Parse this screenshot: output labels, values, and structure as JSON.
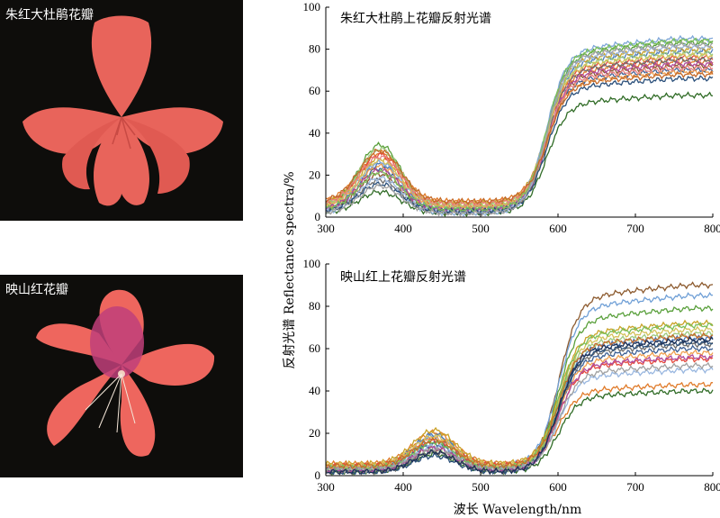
{
  "photos": [
    {
      "label": "朱红大杜鹃花瓣",
      "petal_color": "#e8645b",
      "vein_color": "#c84a44"
    },
    {
      "label": "映山红花瓣",
      "petal_color": "#ee665e",
      "center_color": "#c0407a"
    }
  ],
  "xlabel": "波长 Wavelength/nm",
  "ylabel": "反射光谱 Reflectance spectra/%",
  "chart_data": [
    {
      "type": "line",
      "title": "朱红大杜鹃上花瓣反射光谱",
      "xlim": [
        300,
        800
      ],
      "ylim": [
        0,
        100
      ],
      "xticks": [
        300,
        400,
        500,
        600,
        700,
        800
      ],
      "yticks": [
        0,
        20,
        40,
        60,
        80,
        100
      ],
      "grid": false,
      "curve_shape": {
        "peak_x": 370,
        "trough_x": 510,
        "rise_mid_x": 585
      },
      "series": [
        {
          "color": "#5aa03c",
          "peak": 37,
          "trough": 5,
          "plateau": 83
        },
        {
          "color": "#2f6b25",
          "peak": 13,
          "trough": 2,
          "plateau": 58
        },
        {
          "color": "#e07b2a",
          "peak": 33,
          "trough": 8,
          "plateau": 74
        },
        {
          "color": "#4b79b8",
          "peak": 27,
          "trough": 3,
          "plateau": 79
        },
        {
          "color": "#c9a227",
          "peak": 30,
          "trough": 7,
          "plateau": 80
        },
        {
          "color": "#3c5f94",
          "peak": 25,
          "trough": 4,
          "plateau": 70
        },
        {
          "color": "#e64a3c",
          "peak": 32,
          "trough": 6,
          "plateau": 76
        },
        {
          "color": "#7fa7d8",
          "peak": 28,
          "trough": 5,
          "plateau": 85
        },
        {
          "color": "#8c5a2e",
          "peak": 22,
          "trough": 3,
          "plateau": 72
        },
        {
          "color": "#9dc97e",
          "peak": 35,
          "trough": 6,
          "plateau": 78
        },
        {
          "color": "#f0a050",
          "peak": 26,
          "trough": 5,
          "plateau": 69
        },
        {
          "color": "#6d6d6d",
          "peak": 19,
          "trough": 3,
          "plateau": 75
        },
        {
          "color": "#b04a9a",
          "peak": 24,
          "trough": 4,
          "plateau": 73
        },
        {
          "color": "#99b7e0",
          "peak": 20,
          "trough": 2,
          "plateau": 81
        },
        {
          "color": "#d4c25a",
          "peak": 29,
          "trough": 6,
          "plateau": 77
        },
        {
          "color": "#2a4f7a",
          "peak": 17,
          "trough": 3,
          "plateau": 66
        },
        {
          "color": "#e88080",
          "peak": 31,
          "trough": 7,
          "plateau": 71
        },
        {
          "color": "#7bbf5a",
          "peak": 23,
          "trough": 4,
          "plateau": 84
        },
        {
          "color": "#a0a0a0",
          "peak": 16,
          "trough": 2,
          "plateau": 82
        },
        {
          "color": "#c46a2a",
          "peak": 34,
          "trough": 8,
          "plateau": 68
        }
      ]
    },
    {
      "type": "line",
      "title": "映山红上花瓣反射光谱",
      "xlim": [
        300,
        800
      ],
      "ylim": [
        0,
        100
      ],
      "xticks": [
        300,
        400,
        500,
        600,
        700,
        800
      ],
      "yticks": [
        0,
        20,
        40,
        60,
        80,
        100
      ],
      "grid": false,
      "curve_shape": {
        "peak_x": 440,
        "trough_x": 525,
        "rise_mid_x": 600
      },
      "series": [
        {
          "color": "#8c5a2e",
          "peak": 14,
          "trough": 3,
          "plateau": 90
        },
        {
          "color": "#6f9fd6",
          "peak": 20,
          "trough": 5,
          "plateau": 85
        },
        {
          "color": "#5aa03c",
          "peak": 17,
          "trough": 4,
          "plateau": 79
        },
        {
          "color": "#2f6b25",
          "peak": 11,
          "trough": 2,
          "plateau": 40
        },
        {
          "color": "#e07b2a",
          "peak": 22,
          "trough": 6,
          "plateau": 43
        },
        {
          "color": "#4b79b8",
          "peak": 21,
          "trough": 4,
          "plateau": 65
        },
        {
          "color": "#c9a227",
          "peak": 23,
          "trough": 6,
          "plateau": 72
        },
        {
          "color": "#3c5f94",
          "peak": 16,
          "trough": 3,
          "plateau": 60
        },
        {
          "color": "#e64a3c",
          "peak": 18,
          "trough": 5,
          "plateau": 55
        },
        {
          "color": "#9dc97e",
          "peak": 13,
          "trough": 3,
          "plateau": 67
        },
        {
          "color": "#f0a050",
          "peak": 19,
          "trough": 5,
          "plateau": 58
        },
        {
          "color": "#6d6d6d",
          "peak": 12,
          "trough": 2,
          "plateau": 62
        },
        {
          "color": "#99b7e0",
          "peak": 15,
          "trough": 4,
          "plateau": 50
        },
        {
          "color": "#d4c25a",
          "peak": 20,
          "trough": 5,
          "plateau": 69
        },
        {
          "color": "#2a4f7a",
          "peak": 10,
          "trough": 2,
          "plateau": 63
        },
        {
          "color": "#b04a9a",
          "peak": 14,
          "trough": 3,
          "plateau": 56
        },
        {
          "color": "#7bbf5a",
          "peak": 17,
          "trough": 4,
          "plateau": 71
        },
        {
          "color": "#a0a0a0",
          "peak": 13,
          "trough": 3,
          "plateau": 52
        },
        {
          "color": "#c46a2a",
          "peak": 18,
          "trough": 5,
          "plateau": 66
        },
        {
          "color": "#1d2f55",
          "peak": 12,
          "trough": 2,
          "plateau": 64
        }
      ]
    }
  ]
}
